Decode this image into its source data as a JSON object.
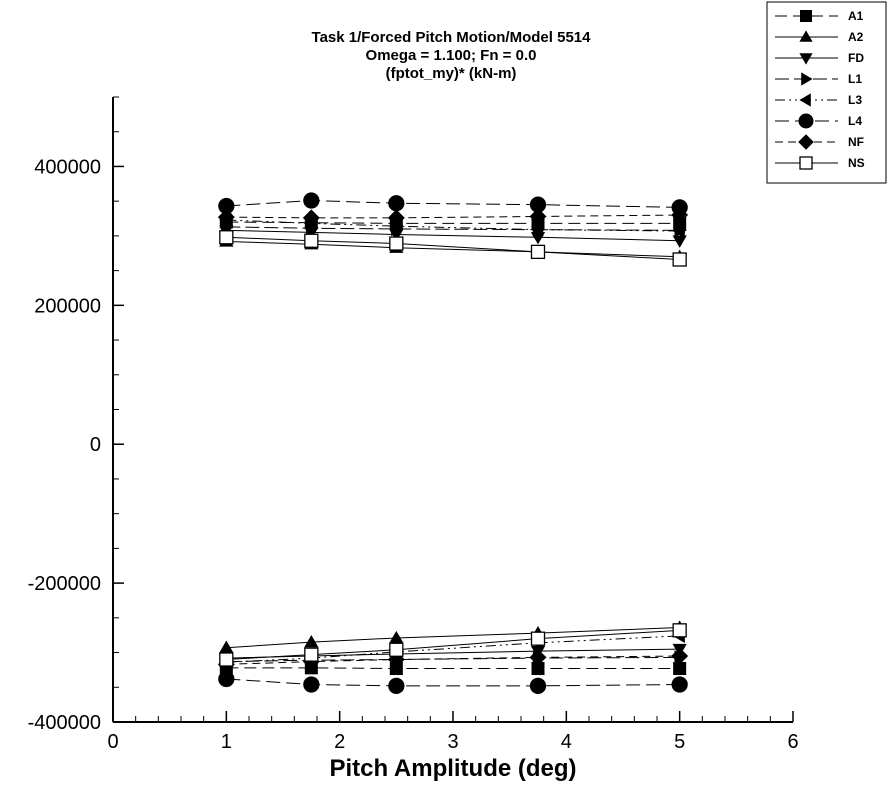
{
  "chart_data": {
    "type": "line",
    "title_lines": [
      "Task 1/Forced Pitch Motion/Model 5514",
      "Omega =  1.100; Fn = 0.0",
      "(fptot_my)* (kN-m)"
    ],
    "xlabel": "Pitch Amplitude (deg)",
    "ylabel": "",
    "xlim": [
      0,
      6
    ],
    "ylim": [
      -400000,
      500000
    ],
    "x_ticks": [
      0,
      1,
      2,
      3,
      4,
      5,
      6
    ],
    "y_ticks": [
      -400000,
      -200000,
      0,
      200000,
      400000
    ],
    "y_tick_labels": [
      "-400000",
      "-200000",
      "0",
      "200000",
      "400000"
    ],
    "x": [
      1,
      1.75,
      2.5,
      3.75,
      5
    ],
    "grid": false,
    "legend_position": "top-right",
    "series": [
      {
        "name": "A1",
        "marker": "square-filled",
        "dash": "12,6",
        "upper": [
          320000,
          319000,
          318000,
          318000,
          318000
        ],
        "lower": [
          -322000,
          -322000,
          -323000,
          -323000,
          -323000
        ]
      },
      {
        "name": "A2",
        "marker": "triangle-up",
        "dash": "none",
        "upper": [
          292000,
          288000,
          283000,
          277000,
          270000
        ],
        "lower": [
          -293000,
          -285000,
          -279000,
          -272000,
          -264000
        ]
      },
      {
        "name": "FD",
        "marker": "triangle-down",
        "dash": "none",
        "upper": [
          308000,
          305000,
          302000,
          298000,
          293000
        ],
        "lower": [
          -308000,
          -305000,
          -302000,
          -298000,
          -295000
        ]
      },
      {
        "name": "L1",
        "marker": "triangle-right",
        "dash": "14,5",
        "upper": [
          313000,
          311000,
          310000,
          309000,
          308000
        ],
        "lower": [
          -313000,
          -311000,
          -310000,
          -308000,
          -307000
        ]
      },
      {
        "name": "L3",
        "marker": "triangle-left",
        "dash": "10,4,2,4,2,4",
        "upper": [
          323000,
          318000,
          314000,
          309000,
          307000
        ],
        "lower": [
          -314000,
          -308000,
          -299000,
          -286000,
          -276000
        ]
      },
      {
        "name": "L4",
        "marker": "circle-filled",
        "dash": "14,6",
        "upper": [
          343000,
          351000,
          347000,
          345000,
          341000
        ],
        "lower": [
          -338000,
          -346000,
          -348000,
          -348000,
          -346000
        ]
      },
      {
        "name": "NF",
        "marker": "diamond-filled",
        "dash": "8,5",
        "upper": [
          327000,
          326000,
          326000,
          328000,
          330000
        ],
        "lower": [
          -317000,
          -313000,
          -310000,
          -307000,
          -305000
        ]
      },
      {
        "name": "NS",
        "marker": "square-open",
        "dash": "none",
        "upper": [
          298000,
          293000,
          289000,
          277000,
          266000
        ],
        "lower": [
          -310000,
          -303000,
          -296000,
          -280000,
          -268000
        ]
      }
    ]
  }
}
